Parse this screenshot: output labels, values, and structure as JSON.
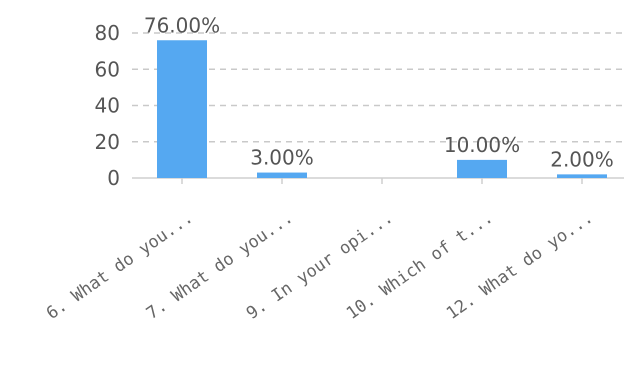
{
  "chart_data": {
    "type": "bar",
    "title": "",
    "xlabel": "",
    "ylabel": "",
    "categories": [
      "6. What do you...",
      "7. What do you...",
      "9. In your opi...",
      "10. Which of t...",
      "12. What do yo..."
    ],
    "values": [
      76,
      3,
      0,
      10,
      2
    ],
    "data_labels": [
      "76.00%",
      "3.00%",
      "",
      "10.00%",
      "2.00%"
    ],
    "ylim": [
      0,
      80
    ],
    "yticks": [
      0,
      20,
      40,
      60,
      80
    ],
    "grid": true,
    "legend": "none",
    "bar_color": "#55A8F1"
  }
}
